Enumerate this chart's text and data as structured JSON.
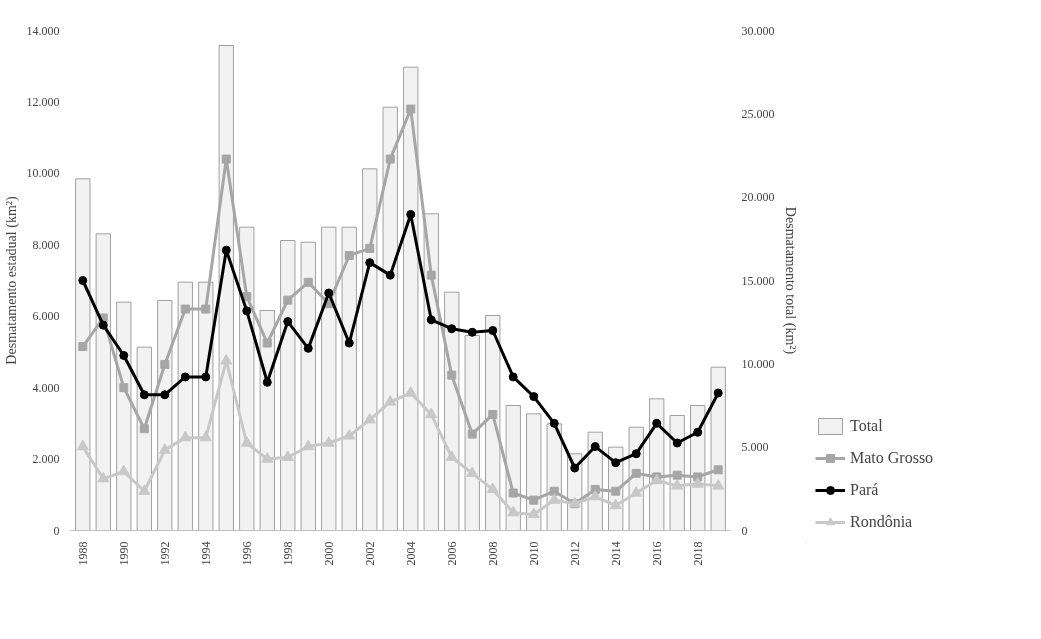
{
  "chart_data": {
    "type": "line",
    "ylabel": "Desmatamento estadual (km²)",
    "y2label": "Desmatamento total (km²)",
    "categories": [
      "1988",
      null,
      "1990",
      null,
      "1992",
      null,
      "1994",
      null,
      "1996",
      null,
      "1998",
      null,
      "2000",
      null,
      "2002",
      null,
      "2004",
      null,
      "2006",
      null,
      "2008",
      null,
      "2010",
      null,
      "2012",
      null,
      "2014",
      null,
      "2016",
      null,
      "2018",
      null
    ],
    "series": [
      {
        "name": "Total",
        "type": "bar",
        "axis": "y2",
        "color": "#f2f2f2",
        "values": [
          21100,
          17800,
          13700,
          11000,
          13800,
          14900,
          14900,
          29100,
          18200,
          13200,
          17400,
          17300,
          18200,
          18200,
          21700,
          25400,
          27800,
          19000,
          14300,
          11700,
          12900,
          7500,
          7000,
          6400,
          4600,
          5900,
          5000,
          6200,
          7900,
          6900,
          7500,
          9800
        ]
      },
      {
        "name": "Mato Grosso",
        "marker": "square",
        "color": "#a6a6a6",
        "values": [
          5150,
          5950,
          4000,
          2850,
          4650,
          6200,
          6200,
          10400,
          6550,
          5250,
          6450,
          6950,
          6350,
          7700,
          7900,
          10400,
          11800,
          7150,
          4350,
          2700,
          3250,
          1050,
          850,
          1100,
          750,
          1150,
          1100,
          1600,
          1500,
          1550,
          1500,
          1700
        ]
      },
      {
        "name": "Pará",
        "marker": "circle",
        "color": "#000000",
        "values": [
          7000,
          5750,
          4900,
          3800,
          3800,
          4300,
          4300,
          7850,
          6150,
          4150,
          5850,
          5100,
          6650,
          5250,
          7500,
          7150,
          8850,
          5900,
          5650,
          5550,
          5600,
          4300,
          3750,
          3000,
          1750,
          2350,
          1900,
          2150,
          3000,
          2450,
          2750,
          3850
        ]
      },
      {
        "name": "Rondônia",
        "marker": "triangle",
        "color": "#c8c8c8",
        "values": [
          2350,
          1450,
          1650,
          1100,
          2250,
          2600,
          2600,
          4750,
          2450,
          2000,
          2050,
          2350,
          2450,
          2650,
          3100,
          3600,
          3850,
          3250,
          2050,
          1600,
          1150,
          500,
          450,
          850,
          750,
          950,
          700,
          1050,
          1400,
          1250,
          1300,
          1250
        ]
      }
    ],
    "ylim": [
      0,
      14000
    ],
    "yticks": [
      0,
      {
        "value": 2000,
        "label": "2.000"
      },
      {
        "value": 4000,
        "label": "4.000"
      },
      {
        "value": 6000,
        "label": "6.000"
      },
      {
        "value": 8000,
        "label": "8.000"
      },
      {
        "value": 10000,
        "label": "10.000"
      },
      {
        "value": 12000,
        "label": "12.000"
      },
      {
        "value": 14000,
        "label": "14.000"
      }
    ],
    "y2lim": [
      0,
      30000
    ],
    "y2ticks": [
      0,
      {
        "value": 5000,
        "label": "5.000"
      },
      {
        "value": 10000,
        "label": "10.000"
      },
      {
        "value": 15000,
        "label": "15.000"
      },
      {
        "value": 20000,
        "label": "20.000"
      },
      {
        "value": 25000,
        "label": "25.000"
      },
      {
        "value": 30000,
        "label": "30.000"
      }
    ],
    "grid": false,
    "legend": "right"
  }
}
